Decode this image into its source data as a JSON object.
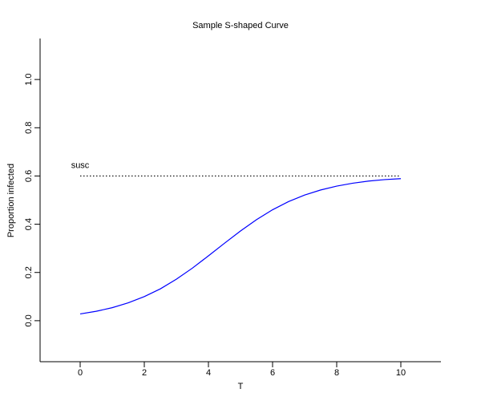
{
  "chart_data": {
    "type": "line",
    "title": "Sample S-shaped Curve",
    "x_label": "T",
    "y_label": "Proportion infected",
    "x": [
      0,
      0.5,
      1,
      1.5,
      2,
      2.5,
      3,
      3.5,
      4,
      4.5,
      5,
      5.5,
      6,
      6.5,
      7,
      7.5,
      8,
      8.5,
      9,
      9.5,
      10
    ],
    "series": [
      {
        "color": "#0000ff",
        "values": [
          0.028,
          0.039,
          0.054,
          0.074,
          0.1,
          0.132,
          0.172,
          0.218,
          0.269,
          0.321,
          0.372,
          0.419,
          0.46,
          0.494,
          0.521,
          0.542,
          0.558,
          0.57,
          0.579,
          0.585,
          0.589
        ]
      },
      {
        "name": "susc",
        "color": "#000000",
        "dash": "dotted",
        "x": [
          0,
          10
        ],
        "values": [
          0.6,
          0.6
        ]
      }
    ],
    "xlim": [
      -1.25,
      11.25
    ],
    "ylim": [
      -0.17,
      1.17
    ],
    "xticks": [
      0,
      2,
      4,
      6,
      8,
      10
    ],
    "yticks": [
      {
        "value": 0,
        "label": "0.0"
      },
      0.2,
      0.4,
      0.6,
      0.8,
      {
        "value": 1,
        "label": "1.0"
      }
    ]
  }
}
